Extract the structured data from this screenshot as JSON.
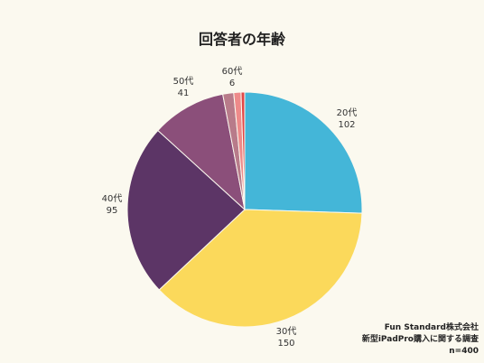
{
  "chart_data": {
    "type": "pie",
    "title": "回答者の年齢",
    "categories": [
      "20代",
      "30代",
      "40代",
      "50代",
      "60代",
      "",
      ""
    ],
    "values": [
      102,
      150,
      95,
      41,
      6,
      4,
      2
    ],
    "colors": [
      "#44b6d8",
      "#fbd95b",
      "#5c3566",
      "#8b4f7a",
      "#b87b8a",
      "#ee8a8a",
      "#e04848"
    ]
  },
  "source": {
    "company": "Fun Standard株式会社",
    "survey": "新型iPadPro購入に関する調査",
    "sample": "n=400"
  }
}
